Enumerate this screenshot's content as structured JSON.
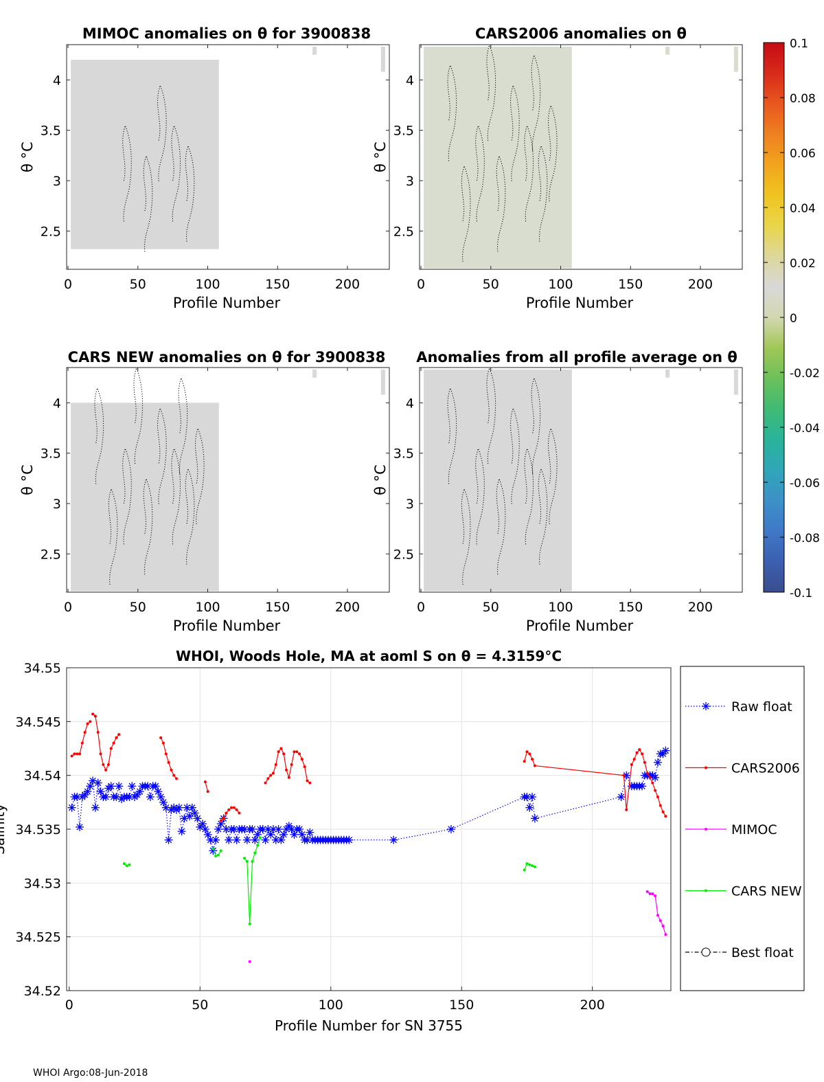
{
  "figure": {
    "footer": "WHOI Argo:08-Jun-2018"
  },
  "colorbar": {
    "ticks": [
      "0.1",
      "0.08",
      "0.06",
      "0.04",
      "0.02",
      "0",
      "-0.02",
      "-0.04",
      "-0.06",
      "-0.08",
      "-0.1"
    ],
    "range": [
      -0.1,
      0.1
    ],
    "colors": [
      "#3a4d8c",
      "#3c5fb1",
      "#3f78c7",
      "#3c91c8",
      "#30a6b8",
      "#29b39a",
      "#3fbb74",
      "#6cc05a",
      "#a1c757",
      "#d3d7b0",
      "#d8d8d8",
      "#dcd79a",
      "#e9d64a",
      "#f0c420",
      "#f2a41d",
      "#ef8020",
      "#e9571f",
      "#d82a1b",
      "#c40c14"
    ]
  },
  "anomaly_panels": [
    {
      "title": "MIMOC anomalies on θ  for 3900838",
      "ylabel": "θ °C",
      "xlabel": "Profile Number",
      "xticks": [
        "0",
        "50",
        "100",
        "150",
        "200"
      ],
      "yticks": [
        "4",
        "3.5",
        "3",
        "2.5"
      ],
      "xlim": [
        -1,
        230
      ],
      "ylim": [
        2.12,
        4.35
      ]
    },
    {
      "title": "CARS2006 anomalies on θ",
      "ylabel": "θ °C",
      "xlabel": "Profile Number",
      "xticks": [
        "0",
        "50",
        "100",
        "150",
        "200"
      ],
      "yticks": [
        "4",
        "3.5",
        "3",
        "2.5"
      ],
      "xlim": [
        -1,
        230
      ],
      "ylim": [
        2.12,
        4.35
      ]
    },
    {
      "title": "CARS NEW anomalies on θ for 3900838",
      "ylabel": "θ °C",
      "xlabel": "Profile Number",
      "xticks": [
        "0",
        "50",
        "100",
        "150",
        "200"
      ],
      "yticks": [
        "4",
        "3.5",
        "3",
        "2.5"
      ],
      "xlim": [
        -1,
        230
      ],
      "ylim": [
        2.12,
        4.35
      ]
    },
    {
      "title": "Anomalies from all profile average on θ",
      "ylabel": "θ °C",
      "xlabel": "Profile Number",
      "xticks": [
        "0",
        "50",
        "100",
        "150",
        "200"
      ],
      "yticks": [
        "4",
        "3.5",
        "3",
        "2.5"
      ],
      "xlim": [
        -1,
        230
      ],
      "ylim": [
        2.12,
        4.35
      ]
    }
  ],
  "chart_data": {
    "type": "line",
    "title": "WHOI, Woods Hole, MA at aoml S on θ = 4.3159°C",
    "xlabel": "Profile Number for SN 3755",
    "ylabel": "Salinity",
    "xlim": [
      -1,
      230
    ],
    "ylim": [
      34.52,
      34.55
    ],
    "xticks": [
      "0",
      "50",
      "100",
      "150",
      "200"
    ],
    "yticks": [
      "34.52",
      "34.525",
      "34.53",
      "34.535",
      "34.54",
      "34.545",
      "34.55"
    ],
    "grid": true,
    "legend_position": "right, outside",
    "series": [
      {
        "name": "Raw float",
        "color": "#0000ff",
        "line": "dotted",
        "marker": "asterisk",
        "x": [
          1,
          2,
          3,
          4,
          5,
          6,
          7,
          8,
          9,
          10,
          11,
          12,
          13,
          14,
          15,
          16,
          17,
          18,
          19,
          20,
          21,
          22,
          23,
          24,
          25,
          26,
          27,
          28,
          29,
          30,
          31,
          32,
          33,
          34,
          35,
          36,
          37,
          38,
          39,
          40,
          41,
          42,
          43,
          44,
          45,
          46,
          47,
          48,
          49,
          50,
          51,
          52,
          53,
          54,
          55,
          56,
          57,
          58,
          59,
          60,
          61,
          62,
          63,
          64,
          65,
          66,
          67,
          68,
          69,
          70,
          71,
          72,
          73,
          74,
          75,
          76,
          77,
          78,
          79,
          80,
          81,
          82,
          83,
          84,
          85,
          86,
          87,
          88,
          89,
          90,
          91,
          92,
          93,
          94,
          95,
          96,
          97,
          98,
          99,
          100,
          101,
          102,
          103,
          104,
          105,
          106,
          107,
          124,
          146,
          174,
          175,
          176,
          177,
          178,
          211,
          213,
          215,
          216,
          217,
          218,
          219,
          220,
          221,
          222,
          223,
          224,
          225,
          226,
          227,
          228
        ],
        "y": [
          34.537,
          34.538,
          34.538,
          34.5352,
          34.538,
          34.5382,
          34.5385,
          34.539,
          34.5395,
          34.537,
          34.5393,
          34.5385,
          34.538,
          34.538,
          34.5388,
          34.539,
          34.538,
          34.538,
          34.539,
          34.5378,
          34.538,
          34.538,
          34.538,
          34.539,
          34.538,
          34.5382,
          34.5385,
          34.539,
          34.539,
          34.539,
          34.538,
          34.539,
          34.539,
          34.5385,
          34.538,
          34.5375,
          34.537,
          34.534,
          34.5368,
          34.537,
          34.5368,
          34.537,
          34.5348,
          34.536,
          34.537,
          34.5362,
          34.537,
          34.5365,
          34.536,
          34.5352,
          34.5355,
          34.535,
          34.5345,
          34.534,
          34.533,
          34.534,
          34.535,
          34.5355,
          34.536,
          34.535,
          34.534,
          34.535,
          34.535,
          34.534,
          34.535,
          34.535,
          34.535,
          34.534,
          34.535,
          34.535,
          34.534,
          34.5345,
          34.535,
          34.535,
          34.534,
          34.535,
          34.5345,
          34.535,
          34.534,
          34.535,
          34.534,
          34.5345,
          34.535,
          34.5353,
          34.535,
          34.5345,
          34.535,
          34.535,
          34.5345,
          34.534,
          34.534,
          34.5347,
          34.534,
          34.534,
          34.534,
          34.534,
          34.534,
          34.534,
          34.534,
          34.534,
          34.534,
          34.534,
          34.534,
          34.534,
          34.534,
          34.534,
          34.534,
          34.534,
          34.535,
          34.538,
          34.538,
          34.537,
          34.538,
          34.536,
          34.538,
          34.54,
          34.539,
          34.539,
          34.539,
          34.539,
          34.539,
          34.54,
          34.54,
          34.54,
          34.54,
          34.5398,
          34.5412,
          34.542,
          34.542,
          34.5423
        ]
      },
      {
        "name": "CARS2006",
        "color": "#ff0000",
        "line": "solid",
        "marker": "dot",
        "segments": [
          {
            "x": [
              1,
              2,
              3,
              4,
              5,
              6,
              7,
              8
            ],
            "y": [
              34.5418,
              34.542,
              34.542,
              34.542,
              34.543,
              34.544,
              34.5448,
              34.545
            ]
          },
          {
            "x": [
              9,
              10,
              11,
              12,
              13,
              14,
              15,
              16,
              17,
              18,
              19
            ],
            "y": [
              34.5457,
              34.5455,
              34.544,
              34.542,
              34.541,
              34.5405,
              34.541,
              34.5425,
              34.543,
              34.5435,
              34.5438
            ]
          },
          {
            "x": [
              35,
              36,
              37,
              38,
              39,
              40,
              41
            ],
            "y": [
              34.5435,
              34.543,
              34.542,
              34.5412,
              34.5405,
              34.54,
              34.5397
            ]
          },
          {
            "x": [
              52,
              53
            ],
            "y": [
              34.5394,
              34.5385
            ]
          },
          {
            "x": [
              58,
              59,
              60,
              61,
              62,
              63,
              64,
              65
            ],
            "y": [
              34.5358,
              34.536,
              34.5365,
              34.5368,
              34.537,
              34.537,
              34.5368,
              34.5365
            ]
          },
          {
            "x": [
              75,
              76,
              77,
              78,
              79,
              80,
              81,
              82,
              83,
              84,
              85,
              86,
              87,
              88,
              89,
              90,
              91,
              92
            ],
            "y": [
              34.5393,
              34.5397,
              34.54,
              34.5402,
              34.541,
              34.5422,
              34.5425,
              34.542,
              34.5405,
              34.5398,
              34.541,
              34.5422,
              34.5422,
              34.542,
              34.5415,
              34.5408,
              34.5395,
              34.5393
            ]
          },
          {
            "x": [
              174,
              175,
              176,
              177,
              178,
              212,
              213,
              215,
              216,
              217,
              218,
              219,
              220,
              221,
              222,
              223,
              224,
              225,
              226,
              227,
              228
            ],
            "y": [
              34.5413,
              34.5422,
              34.542,
              34.5415,
              34.5409,
              34.54,
              34.5368,
              34.541,
              34.5415,
              34.5421,
              34.5424,
              34.542,
              34.5412,
              34.5402,
              34.5398,
              34.5393,
              34.5386,
              34.538,
              34.5372,
              34.5366,
              34.5362
            ]
          }
        ]
      },
      {
        "name": "MIMOC",
        "color": "#ff00ff",
        "line": "solid",
        "marker": "dot",
        "segments": [
          {
            "x": [
              69
            ],
            "y": [
              34.5227
            ]
          },
          {
            "x": [
              221,
              222,
              223,
              224,
              225,
              226,
              227,
              228
            ],
            "y": [
              34.5292,
              34.529,
              34.529,
              34.5288,
              34.527,
              34.5265,
              34.526,
              34.5252
            ]
          }
        ]
      },
      {
        "name": "CARS NEW",
        "color": "#00ee00",
        "line": "solid",
        "marker": "dot",
        "segments": [
          {
            "x": [
              21,
              22,
              23
            ],
            "y": [
              34.5318,
              34.5316,
              34.5317
            ]
          },
          {
            "x": [
              55,
              56,
              57,
              58
            ],
            "y": [
              34.5332,
              34.5325,
              34.5326,
              34.533
            ]
          },
          {
            "x": [
              67,
              68,
              69,
              70,
              71,
              72,
              73
            ],
            "y": [
              34.5323,
              34.532,
              34.5262,
              34.532,
              34.5328,
              34.5335,
              34.5342
            ]
          },
          {
            "x": [
              174,
              175,
              176,
              177,
              178
            ],
            "y": [
              34.5312,
              34.5318,
              34.5317,
              34.5316,
              34.5315
            ]
          }
        ]
      },
      {
        "name": "Best float",
        "color": "#000000",
        "line": "dashdot",
        "marker": "circle",
        "segments": []
      }
    ]
  }
}
